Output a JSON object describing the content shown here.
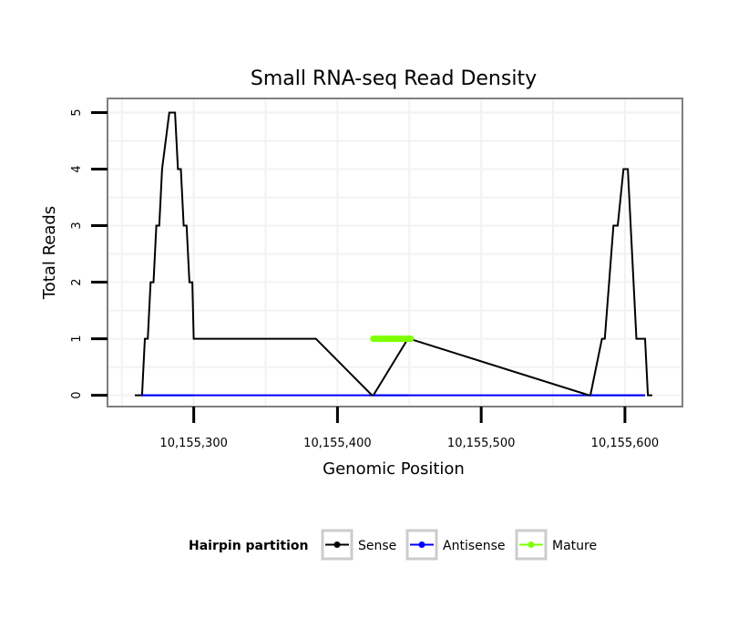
{
  "chart_data": {
    "type": "line",
    "title": "Small RNA-seq Read Density",
    "xlabel": "Genomic Position",
    "ylabel": "Total Reads",
    "xlim": [
      10155240,
      10155640
    ],
    "ylim": [
      -0.2,
      5.25
    ],
    "x_ticks": [
      10155300,
      10155400,
      10155500,
      10155600
    ],
    "x_tick_labels": [
      "10,155,300",
      "10,155,400",
      "10,155,500",
      "10,155,600"
    ],
    "y_ticks": [
      0,
      1,
      2,
      3,
      4,
      5
    ],
    "y_tick_labels": [
      "0",
      "1",
      "2",
      "3",
      "4",
      "5"
    ],
    "legend": {
      "title": "Hairpin partition",
      "position": "bottom",
      "entries": [
        {
          "name": "Sense",
          "color": "#000000"
        },
        {
          "name": "Antisense",
          "color": "#0000ff"
        },
        {
          "name": "Mature",
          "color": "#7fff00"
        }
      ]
    },
    "series": [
      {
        "name": "Sense",
        "color": "#000000",
        "x": [
          10155259,
          10155264,
          10155266,
          10155268,
          10155270,
          10155272,
          10155274,
          10155276,
          10155278,
          10155283,
          10155287,
          10155289,
          10155291,
          10155293,
          10155295,
          10155297,
          10155299,
          10155300,
          10155385,
          10155424,
          10155425,
          10155449,
          10155450,
          10155575,
          10155576,
          10155584,
          10155586,
          10155592,
          10155595,
          10155599,
          10155602,
          10155604,
          10155608,
          10155614,
          10155616,
          10155619
        ],
        "y": [
          0,
          0,
          1,
          1,
          2,
          2,
          3,
          3,
          4,
          5,
          5,
          4,
          4,
          3,
          3,
          2,
          2,
          1,
          1,
          0,
          0,
          1,
          1,
          0,
          0,
          1,
          1,
          3,
          3,
          4,
          4,
          3,
          1,
          1,
          0,
          0
        ]
      },
      {
        "name": "Antisense",
        "color": "#0000ff",
        "x": [
          10155264,
          10155300,
          10155425,
          10155449,
          10155576,
          10155614
        ],
        "y": [
          0,
          0,
          0,
          0,
          0,
          0
        ]
      },
      {
        "name": "Mature",
        "color": "#7fff00",
        "x": [
          10155425,
          10155451
        ],
        "y": [
          1,
          1
        ]
      }
    ]
  }
}
